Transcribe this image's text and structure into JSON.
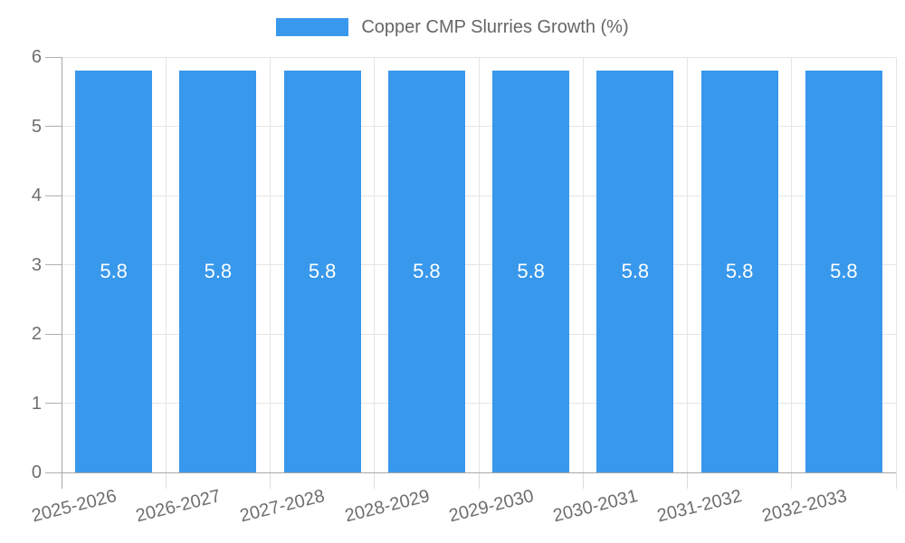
{
  "chart_data": {
    "type": "bar",
    "title": "",
    "legend_label": "Copper CMP Slurries Growth (%)",
    "legend_position": "top",
    "categories": [
      "2025-2026",
      "2026-2027",
      "2027-2028",
      "2028-2029",
      "2029-2030",
      "2030-2031",
      "2031-2032",
      "2032-2033"
    ],
    "series": [
      {
        "name": "Copper CMP Slurries Growth (%)",
        "values": [
          5.8,
          5.8,
          5.8,
          5.8,
          5.8,
          5.8,
          5.8,
          5.8
        ],
        "value_labels": [
          "5.8",
          "5.8",
          "5.8",
          "5.8",
          "5.8",
          "5.8",
          "5.8",
          "5.8"
        ]
      }
    ],
    "ylabel": "",
    "xlabel": "",
    "ylim": [
      0,
      6
    ],
    "yticks": [
      0,
      1,
      2,
      3,
      4,
      5,
      6
    ],
    "grid": true,
    "colors": {
      "bar": "#3898EC",
      "value_label": "#FFFFFF",
      "axis": "#A8A8A8",
      "grid": "#E5E5E5",
      "y_tick": "#B0B0B0",
      "x_tick": "#DCDCDC",
      "tick_label": "#6E6E6E"
    }
  }
}
